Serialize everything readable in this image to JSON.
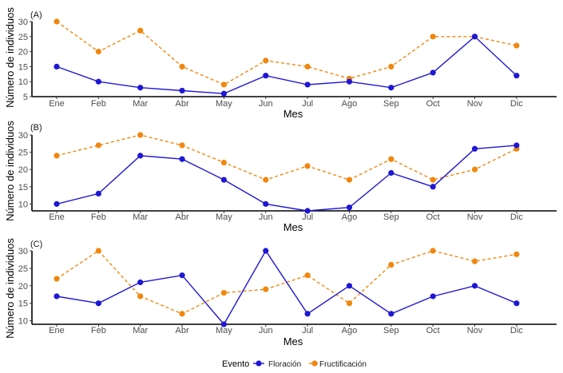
{
  "legend": {
    "title": "Evento",
    "entries": [
      {
        "name": "Floración",
        "color": "#1f17d4",
        "dash": "solid"
      },
      {
        "name": "Fructificación",
        "color": "#f0870f",
        "dash": "dashed"
      }
    ]
  },
  "chart_data": [
    {
      "type": "line",
      "panel": "(A)",
      "xlabel": "Mes",
      "ylabel": "Número de individuos",
      "categories": [
        "Ene",
        "Feb",
        "Mar",
        "Abr",
        "May",
        "Jun",
        "Jul",
        "Ago",
        "Sep",
        "Oct",
        "Nov",
        "Dic"
      ],
      "ylim": [
        5,
        30
      ],
      "yticks": [
        5,
        10,
        15,
        20,
        25,
        30
      ],
      "series": [
        {
          "name": "Floración",
          "values": [
            15,
            10,
            8,
            7,
            6,
            12,
            9,
            10,
            8,
            13,
            25,
            12
          ]
        },
        {
          "name": "Fructificación",
          "values": [
            30,
            20,
            27,
            15,
            9,
            17,
            15,
            11,
            15,
            25,
            25,
            22
          ]
        }
      ]
    },
    {
      "type": "line",
      "panel": "(B)",
      "xlabel": "Mes",
      "ylabel": "Número de individuos",
      "categories": [
        "Ene",
        "Feb",
        "Mar",
        "Abr",
        "May",
        "Jun",
        "Jul",
        "Ago",
        "Sep",
        "Oct",
        "Nov",
        "Dic"
      ],
      "ylim": [
        8,
        30
      ],
      "yticks": [
        10,
        15,
        20,
        25,
        30
      ],
      "series": [
        {
          "name": "Floración",
          "values": [
            10,
            13,
            24,
            23,
            17,
            10,
            8,
            9,
            19,
            15,
            26,
            27
          ]
        },
        {
          "name": "Fructificación",
          "values": [
            24,
            27,
            30,
            27,
            22,
            17,
            21,
            17,
            23,
            17,
            20,
            26
          ]
        }
      ]
    },
    {
      "type": "line",
      "panel": "(C)",
      "xlabel": "Mes",
      "ylabel": "Número de individuos",
      "categories": [
        "Ene",
        "Feb",
        "Mar",
        "Abr",
        "May",
        "Jun",
        "Jul",
        "Ago",
        "Sep",
        "Oct",
        "Nov",
        "Dic"
      ],
      "ylim": [
        9,
        30
      ],
      "yticks": [
        10,
        15,
        20,
        25,
        30
      ],
      "series": [
        {
          "name": "Floración",
          "values": [
            17,
            15,
            21,
            23,
            9,
            30,
            12,
            20,
            12,
            17,
            20,
            15
          ]
        },
        {
          "name": "Fructificación",
          "values": [
            22,
            30,
            17,
            12,
            18,
            19,
            23,
            15,
            26,
            30,
            27,
            29
          ]
        }
      ]
    }
  ]
}
